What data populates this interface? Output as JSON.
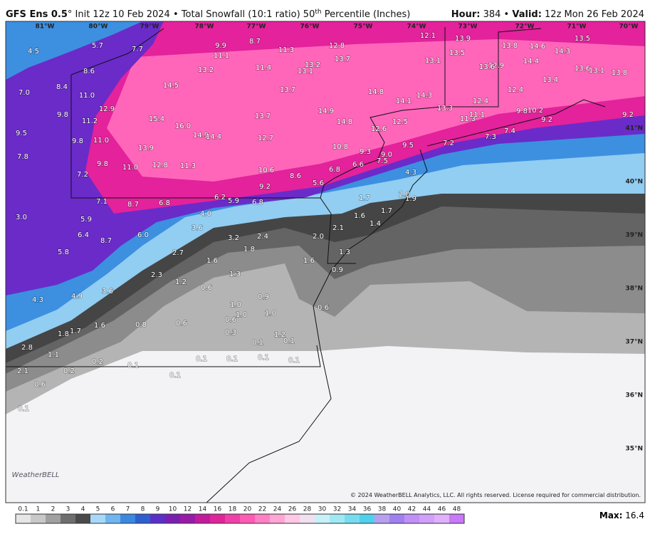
{
  "header": {
    "model": "GFS Ens 0.5",
    "title": "° Init 12z 10 Feb 2024 • Total Snowfall (10:1 ratio) 50",
    "title_sup": "th",
    "title_end": " Percentile (Inches)",
    "hour_label": "Hour:",
    "hour": " 384 • ",
    "valid_label": "Valid:",
    "valid": " 12z Mon 26 Feb 2024"
  },
  "longitudes": [
    "81°W",
    "80°W",
    "79°W",
    "78°W",
    "77°W",
    "76°W",
    "75°W",
    "74°W",
    "73°W",
    "72°W",
    "71°W",
    "70°W"
  ],
  "latitudes": [
    "41°N",
    "40°N",
    "39°N",
    "38°N",
    "37°N",
    "36°N",
    "35°N"
  ],
  "map_labels": [
    "4.5",
    "5.7",
    "7.7",
    "8.6",
    "9.9",
    "8.7",
    "11.3",
    "11.1",
    "12.8",
    "12.1",
    "13.9",
    "13.5",
    "13.8",
    "14.6",
    "14.3",
    "13.5",
    "13.2",
    "11.4",
    "13.2",
    "13.1",
    "13.7",
    "13.1",
    "12.9",
    "13.6",
    "14.4",
    "13.6",
    "13.1",
    "13.8",
    "7.0",
    "8.4",
    "11.0",
    "14.5",
    "13.7",
    "14.8",
    "14.1",
    "14.3",
    "13.4",
    "12.4",
    "12.4",
    "13.3",
    "9.8",
    "12.9",
    "15.4",
    "13.7",
    "14.9",
    "14.8",
    "11.2",
    "16.0",
    "12.6",
    "12.5",
    "11.3",
    "11.1",
    "9.8",
    "10.2",
    "9.2",
    "9.2",
    "9.5",
    "9.8",
    "11.0",
    "14.9",
    "14.4",
    "12.7",
    "10.8",
    "9.3",
    "9.0",
    "9.5",
    "7.2",
    "7.3",
    "7.4",
    "13.9",
    "7.8",
    "9.8",
    "11.0",
    "12.8",
    "11.3",
    "10.6",
    "8.6",
    "6.8",
    "6.6",
    "7.5",
    "4.3",
    "7.2",
    "9.2",
    "5.6",
    "6.2",
    "5.9",
    "6.8",
    "7.1",
    "8.7",
    "6.8",
    "4.0",
    "2.0",
    "1.9",
    "1.7",
    "3.0",
    "5.9",
    "3.6",
    "1.6",
    "1.7",
    "1.4",
    "6.4",
    "6.0",
    "8.7",
    "3.2",
    "2.4",
    "2.0",
    "2.1",
    "5.8",
    "2.7",
    "1.8",
    "1.6",
    "1.3",
    "1.6",
    "1.3",
    "0.9",
    "2.3",
    "1.2",
    "0.6",
    "3.6",
    "4.9",
    "4.3",
    "1.0",
    "0.9",
    "0.6",
    "1.0",
    "1.0",
    "0.6",
    "0.8",
    "0.6",
    "1.6",
    "1.7",
    "1.8",
    "0.3",
    "1.2",
    "0.1",
    "0.1",
    "2.8",
    "1.1",
    "0.2",
    "0.1",
    "0.1",
    "0.1",
    "0.1",
    "0.1",
    "2.1",
    "0.2",
    "0.1",
    "0.6",
    "0.1"
  ],
  "logo": "WeatherBELL",
  "copyright": "© 2024 WeatherBELL Analytics, LLC. All rights reserved. License required for commercial distribution.",
  "legend": {
    "ticks": [
      "0.1",
      "1",
      "2",
      "3",
      "4",
      "5",
      "6",
      "7",
      "8",
      "9",
      "10",
      "12",
      "14",
      "16",
      "18",
      "20",
      "22",
      "24",
      "26",
      "28",
      "30",
      "32",
      "34",
      "36",
      "38",
      "40",
      "42",
      "44",
      "46",
      "48"
    ],
    "colors": [
      "#e6e6e6",
      "#c8c8c8",
      "#a0a0a0",
      "#6e6e6e",
      "#4a4a4a",
      "#a8d8f8",
      "#6fb6f0",
      "#3b88e0",
      "#2e5fd0",
      "#5a2fc8",
      "#7a1fb0",
      "#9a1aa8",
      "#c01c9c",
      "#e0249a",
      "#f040a8",
      "#ff5ab4",
      "#ff80c4",
      "#ffa6d4",
      "#ffc8e4",
      "#f0e0f0",
      "#c8f0f8",
      "#a0e8f4",
      "#78dcf0",
      "#50d0ec",
      "#b8a0f0",
      "#a080f0",
      "#c090f8",
      "#d0a0fa",
      "#e0b0fc",
      "#c878f8"
    ]
  },
  "max_label": "Max:",
  "max_value": " 16.4"
}
